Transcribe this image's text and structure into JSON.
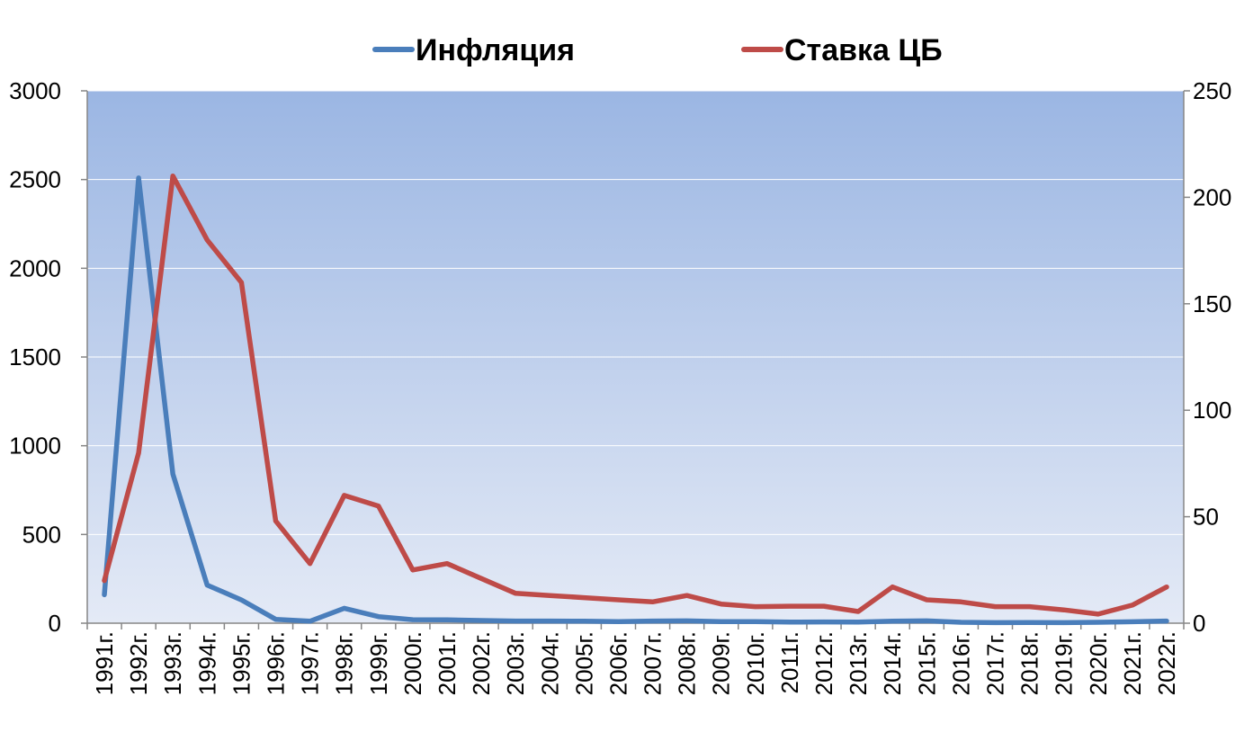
{
  "chart_data": {
    "type": "line",
    "title": "",
    "categories": [
      "1991г.",
      "1992г.",
      "1993г.",
      "1994г.",
      "1995г.",
      "1996г.",
      "1997г.",
      "1998г.",
      "1999г.",
      "2000г.",
      "2001г.",
      "2002г.",
      "2003г.",
      "2004г.",
      "2005г.",
      "2006г.",
      "2007г.",
      "2008г.",
      "2009г.",
      "2010г.",
      "2011г.",
      "2012г.",
      "2013г.",
      "2014г.",
      "2015г.",
      "2016г.",
      "2017г.",
      "2018г.",
      "2019г.",
      "2020г.",
      "2021г.",
      "2022г."
    ],
    "series": [
      {
        "name": "Инфляция",
        "axis": "left",
        "color": "#4a7ebb",
        "values": [
          160,
          2509,
          840,
          215,
          131,
          22,
          11,
          84,
          37,
          20,
          19,
          15,
          12,
          12,
          11,
          9,
          12,
          13,
          9,
          9,
          6,
          7,
          6,
          11,
          13,
          5,
          3,
          4,
          3,
          5,
          8,
          12
        ]
      },
      {
        "name": "Ставка ЦБ",
        "axis": "right",
        "color": "#be4b48",
        "values": [
          20,
          80,
          210,
          180,
          160,
          48,
          28,
          60,
          55,
          25,
          28,
          21,
          14,
          13,
          12,
          11,
          10,
          13,
          9,
          7.75,
          8,
          8,
          5.5,
          17,
          11,
          10,
          7.75,
          7.75,
          6.25,
          4.25,
          8.5,
          17
        ]
      }
    ],
    "y_left": {
      "ylim": [
        0,
        3000
      ],
      "ticks": [
        "0",
        "500",
        "1000",
        "1500",
        "2000",
        "2500",
        "3000"
      ]
    },
    "y_right": {
      "ylim": [
        0,
        250
      ],
      "ticks": [
        "0",
        "50",
        "100",
        "150",
        "200",
        "250"
      ]
    },
    "grid": true,
    "legend": "top-center",
    "background_gradient": [
      "#9bb6e3",
      "#e4eaf6"
    ]
  }
}
